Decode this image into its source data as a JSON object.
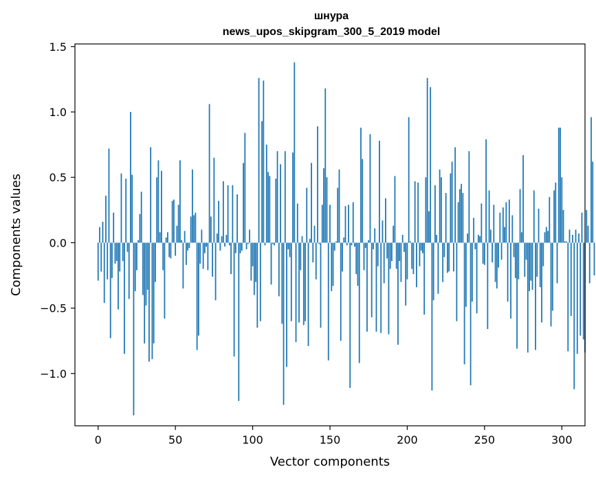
{
  "chart_data": {
    "type": "bar",
    "title": "шнура",
    "subtitle": "news_upos_skipgram_300_5_2019 model",
    "xlabel": "Vector components",
    "ylabel": "Components values",
    "xlim": [
      -15,
      315
    ],
    "ylim": [
      -1.4,
      1.52
    ],
    "xticks": [
      0,
      50,
      100,
      150,
      200,
      250,
      300
    ],
    "xtick_labels": [
      "0",
      "50",
      "100",
      "150",
      "200",
      "250",
      "300"
    ],
    "yticks": [
      -1.0,
      -0.5,
      0.0,
      0.5,
      1.0,
      1.5
    ],
    "ytick_labels": [
      "−1.0",
      "−0.5",
      "0.0",
      "0.5",
      "1.0",
      "1.5"
    ],
    "bar_color": "#1f77b4",
    "grid": false,
    "values": [
      -0.29,
      0.12,
      -0.22,
      0.16,
      -0.46,
      0.36,
      -0.28,
      0.72,
      -0.73,
      -0.27,
      0.23,
      -0.16,
      -0.14,
      -0.51,
      -0.22,
      0.53,
      -0.14,
      -0.85,
      0.49,
      -0.07,
      -0.43,
      1.0,
      0.52,
      -1.32,
      -0.37,
      -0.21,
      0.02,
      0.22,
      0.39,
      -0.4,
      -0.77,
      -0.48,
      -0.36,
      -0.91,
      0.73,
      -0.89,
      -0.77,
      -0.3,
      0.5,
      0.63,
      0.08,
      0.55,
      -0.21,
      -0.58,
      0.04,
      0.08,
      -0.11,
      -0.12,
      0.32,
      0.33,
      -0.1,
      0.13,
      0.29,
      0.63,
      0.02,
      -0.35,
      0.09,
      -0.17,
      -0.06,
      -0.04,
      0.2,
      0.56,
      0.21,
      0.23,
      -0.82,
      -0.71,
      -0.16,
      0.1,
      -0.2,
      -0.08,
      -0.03,
      -0.21,
      1.06,
      0.2,
      -0.26,
      0.65,
      -0.44,
      0.07,
      0.32,
      -0.06,
      0.05,
      0.47,
      -0.03,
      0.06,
      0.44,
      -0.02,
      -0.24,
      0.44,
      -0.87,
      -0.08,
      0.37,
      -1.21,
      -0.08,
      -0.06,
      0.61,
      0.84,
      -0.05,
      -0.01,
      0.1,
      -0.29,
      -0.18,
      -0.4,
      -0.3,
      -0.65,
      1.26,
      -0.6,
      0.93,
      1.24,
      -0.02,
      0.75,
      0.54,
      0.51,
      -0.32,
      -0.01,
      -0.02,
      0.49,
      0.7,
      -0.41,
      0.6,
      -0.62,
      -1.24,
      0.7,
      -0.95,
      -0.05,
      -0.11,
      -0.6,
      0.69,
      1.38,
      -0.76,
      0.3,
      -0.61,
      -0.21,
      0.05,
      -0.63,
      -0.6,
      0.42,
      -0.79,
      0.03,
      0.61,
      -0.15,
      0.13,
      -0.28,
      0.89,
      -0.01,
      -0.65,
      0.29,
      0.57,
      1.18,
      0.5,
      -0.9,
      0.29,
      -0.37,
      -0.33,
      -0.06,
      0.01,
      0.42,
      0.56,
      -0.75,
      -0.22,
      0.04,
      0.28,
      -0.02,
      0.29,
      -1.11,
      -0.02,
      0.31,
      -0.03,
      -0.24,
      -0.33,
      -0.92,
      0.88,
      0.64,
      -0.21,
      -0.04,
      -0.68,
      0.02,
      0.83,
      -0.57,
      -0.05,
      0.11,
      -0.68,
      -0.18,
      0.78,
      -0.69,
      0.17,
      -0.31,
      0.34,
      -0.12,
      -0.7,
      -0.2,
      -0.14,
      0.13,
      0.51,
      -0.2,
      -0.78,
      -0.14,
      -0.3,
      0.06,
      -0.07,
      -0.48,
      -0.28,
      0.96,
      0.01,
      -0.2,
      -0.24,
      0.47,
      -0.34,
      0.46,
      -0.18,
      -0.06,
      -0.08,
      -0.55,
      0.5,
      1.26,
      0.24,
      1.19,
      -1.13,
      -0.44,
      0.44,
      0.06,
      -0.39,
      0.56,
      0.5,
      -0.3,
      -0.11,
      0.38,
      -0.23,
      -0.22,
      0.53,
      0.62,
      -0.22,
      0.73,
      -0.6,
      0.31,
      0.41,
      0.45,
      0.38,
      -0.93,
      -0.49,
      0.07,
      0.7,
      -1.09,
      -0.45,
      0.19,
      -0.05,
      -0.54,
      0.06,
      0.05,
      0.3,
      -0.16,
      -0.17,
      0.79,
      -0.66,
      0.4,
      0.1,
      -0.15,
      0.29,
      -0.3,
      -0.35,
      -0.19,
      0.23,
      -0.13,
      0.27,
      0.12,
      0.31,
      -0.45,
      0.33,
      -0.58,
      0.21,
      -0.11,
      -0.27,
      -0.81,
      -0.28,
      0.41,
      0.08,
      0.67,
      -0.26,
      -0.13,
      -0.84,
      -0.37,
      -0.29,
      -0.36,
      0.4,
      -0.82,
      -0.26,
      0.26,
      -0.34,
      -0.61,
      -0.18,
      0.08,
      0.12,
      0.09,
      0.35,
      -0.64,
      -0.52,
      0.4,
      0.46,
      -0.31,
      0.88,
      0.88,
      0.5,
      0.25,
      0.01,
      0.01,
      -0.83,
      0.1,
      -0.56,
      0.06,
      -1.12,
      0.1,
      -0.85,
      0.07,
      -0.71,
      0.23,
      -0.74,
      -0.84,
      0.25,
      0.13,
      -0.31,
      0.96,
      0.62,
      -0.25
    ]
  }
}
